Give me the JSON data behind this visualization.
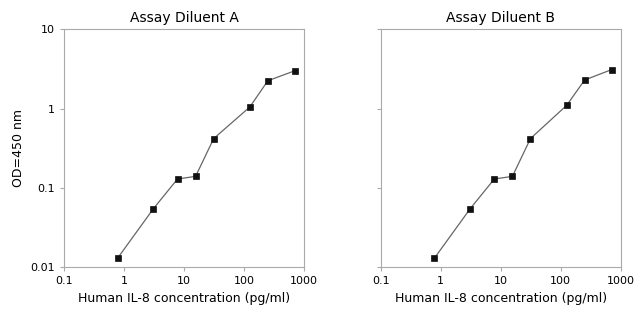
{
  "panel_A": {
    "title": "Assay Diluent A",
    "x": [
      0.78,
      3.1,
      7.8,
      15.6,
      31.25,
      125,
      250,
      700
    ],
    "y": [
      0.013,
      0.055,
      0.13,
      0.14,
      0.42,
      1.05,
      2.25,
      3.0
    ]
  },
  "panel_B": {
    "title": "Assay Diluent B",
    "x": [
      0.78,
      3.1,
      7.8,
      15.6,
      31.25,
      125,
      250,
      700
    ],
    "y": [
      0.013,
      0.055,
      0.13,
      0.14,
      0.42,
      1.1,
      2.3,
      3.1
    ]
  },
  "xlabel": "Human IL-8 concentration (pg/ml)",
  "ylabel": "OD=450 nm",
  "xlim": [
    0.1,
    1000
  ],
  "ylim": [
    0.01,
    10
  ],
  "line_color": "#666666",
  "marker_color": "#111111",
  "marker_size": 4,
  "background_color": "#ffffff",
  "title_fontsize": 10,
  "label_fontsize": 9,
  "tick_fontsize": 8,
  "spine_color": "#aaaaaa",
  "tick_color": "#aaaaaa"
}
